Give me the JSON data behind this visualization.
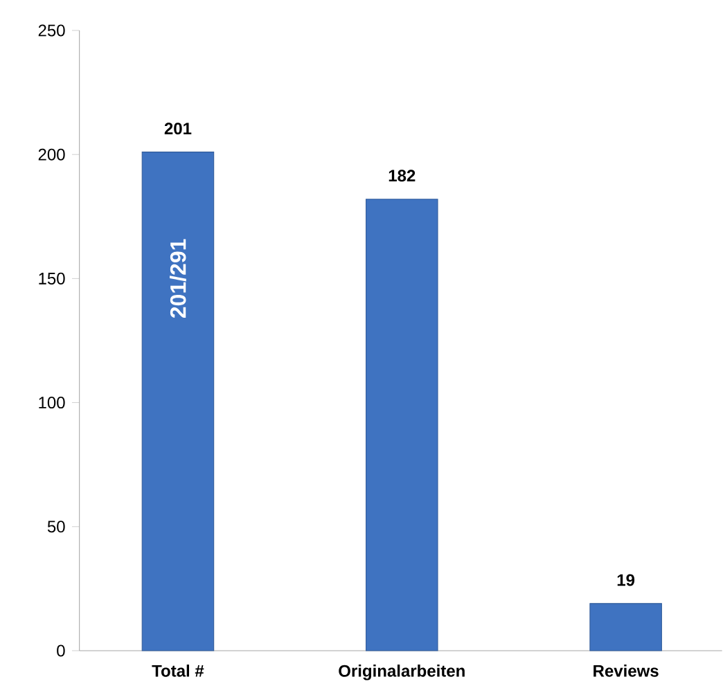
{
  "chart_data": {
    "type": "bar",
    "categories": [
      "Total #",
      "Originalarbeiten",
      "Reviews"
    ],
    "values": [
      201,
      182,
      19
    ],
    "color": "#3f73c1",
    "ylim": [
      0,
      250
    ],
    "yticks": [
      0,
      50,
      100,
      150,
      200,
      250
    ],
    "data_labels": true,
    "grid": false,
    "annotations": [
      "201/291"
    ]
  }
}
